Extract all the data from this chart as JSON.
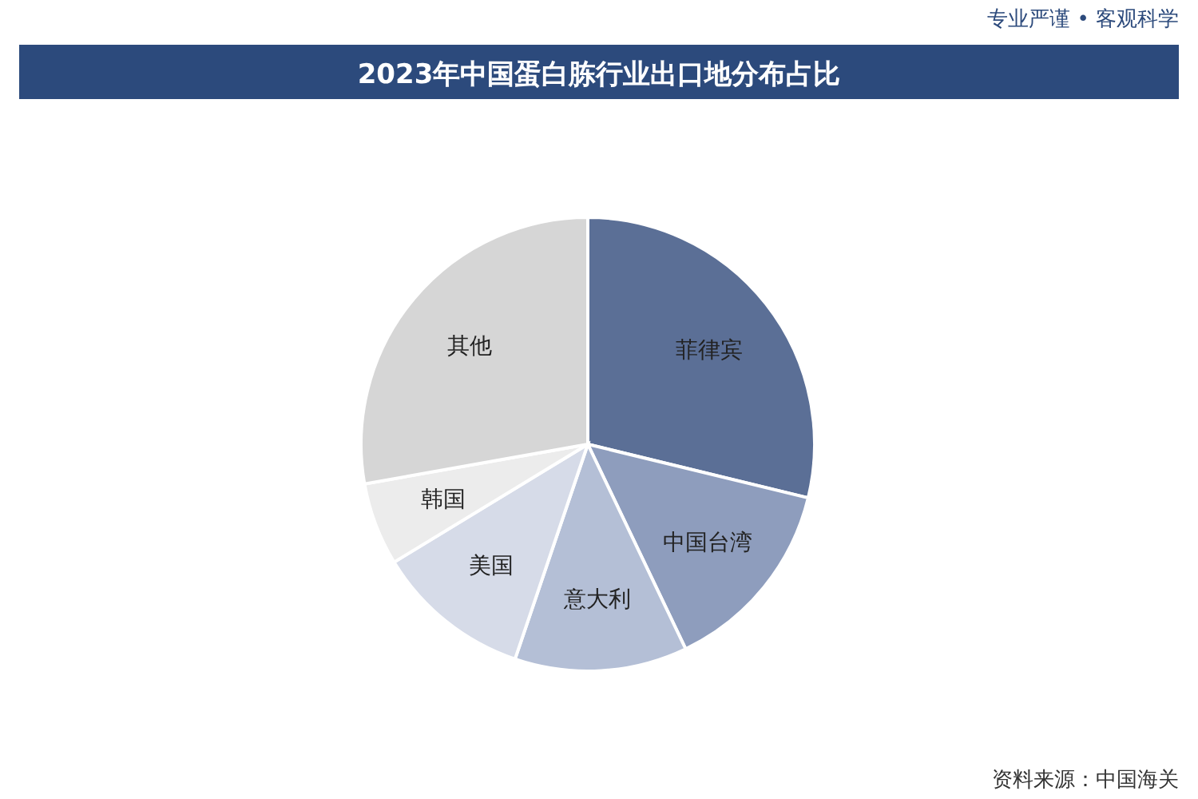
{
  "chart_data": {
    "type": "pie",
    "title": "2023年中国蛋白胨行业出口地分布占比",
    "categories": [
      "菲律宾",
      "中国台湾",
      "意大利",
      "美国",
      "韩国",
      "其他"
    ],
    "values": [
      28.8,
      14.1,
      12.3,
      11.1,
      5.9,
      27.8
    ],
    "colors": [
      "#5b6f96",
      "#8e9dbd",
      "#b4bfd6",
      "#d6dbe8",
      "#ececec",
      "#d6d6d6"
    ],
    "annotations": [
      "专业严谨 • 客观科学",
      "资料来源：中国海关"
    ]
  }
}
